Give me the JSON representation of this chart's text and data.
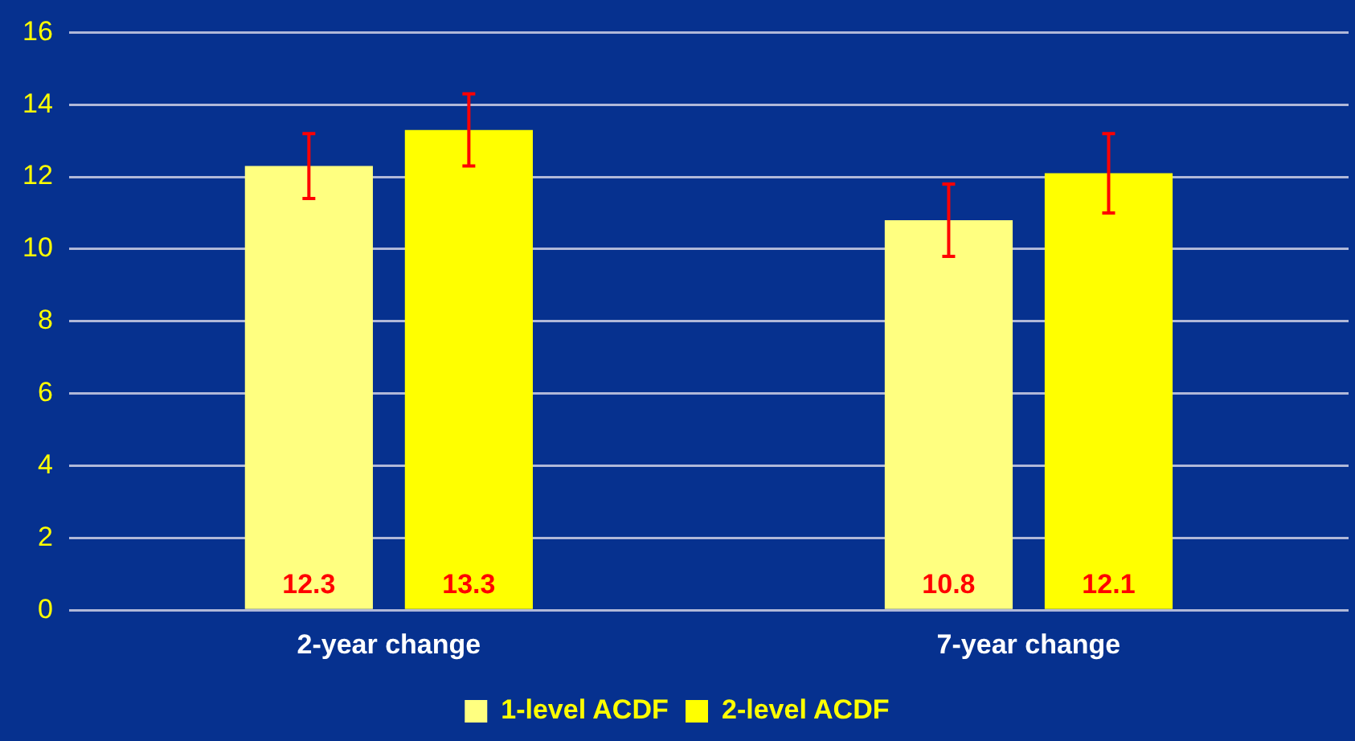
{
  "chart_data": {
    "type": "bar",
    "categories": [
      "2-year change",
      "7-year change"
    ],
    "series": [
      {
        "name": "1-level ACDF",
        "color": "#ffff80",
        "values": [
          12.3,
          10.8
        ],
        "errors": [
          0.9,
          1.0
        ]
      },
      {
        "name": "2-level ACDF",
        "color": "#ffff00",
        "values": [
          13.3,
          12.1
        ],
        "errors": [
          1.0,
          1.1
        ]
      }
    ],
    "ylim": [
      0,
      16
    ],
    "yticks": [
      0,
      2,
      4,
      6,
      8,
      10,
      12,
      14,
      16
    ],
    "grid": "y",
    "legend": "bottom",
    "data_labels": true
  }
}
